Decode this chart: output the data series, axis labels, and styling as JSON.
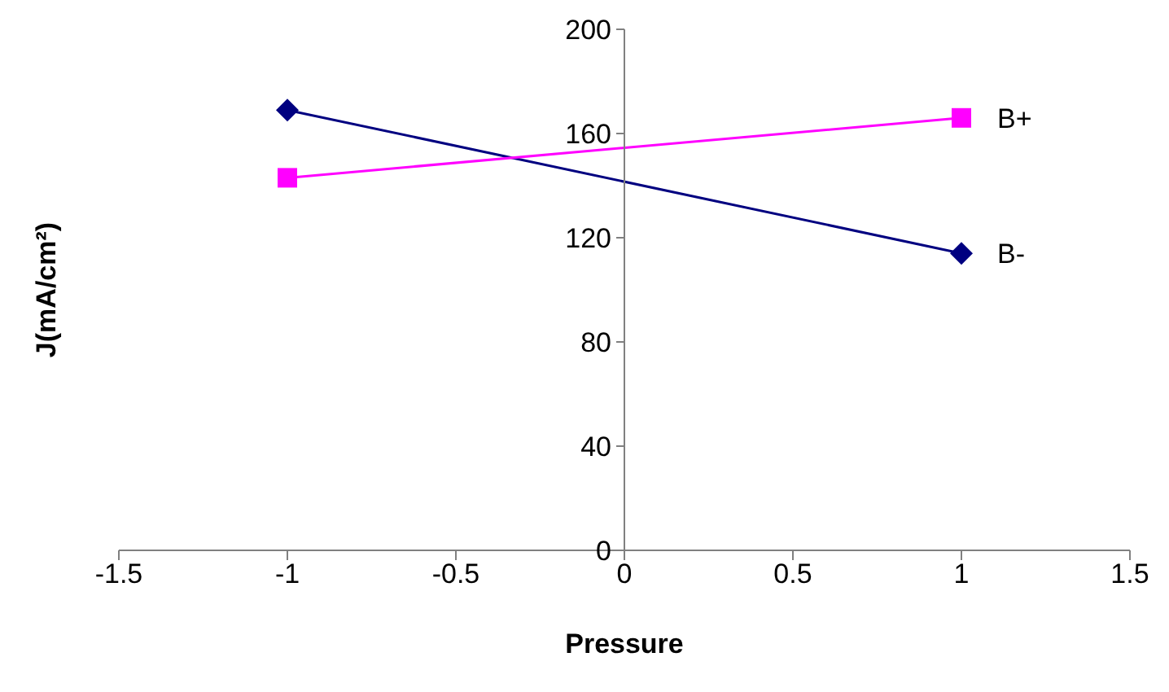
{
  "chart_data": {
    "type": "line",
    "xlabel": "Pressure",
    "ylabel": "J(mA/cm²)",
    "x": [
      -1,
      1
    ],
    "series": [
      {
        "name": "B-",
        "color": "#000080",
        "values": [
          169,
          114
        ],
        "marker": "diamond"
      },
      {
        "name": "B+",
        "color": "#ff00ff",
        "values": [
          143,
          166
        ],
        "marker": "square"
      }
    ],
    "xlim": [
      -1.5,
      1.5
    ],
    "xticks": [
      -1.5,
      -1,
      -0.5,
      0,
      0.5,
      1,
      1.5
    ],
    "ylim": [
      0,
      200
    ],
    "yticks": [
      0,
      40,
      80,
      120,
      160,
      200
    ],
    "grid": false,
    "legend": false,
    "line_style": "solid"
  }
}
